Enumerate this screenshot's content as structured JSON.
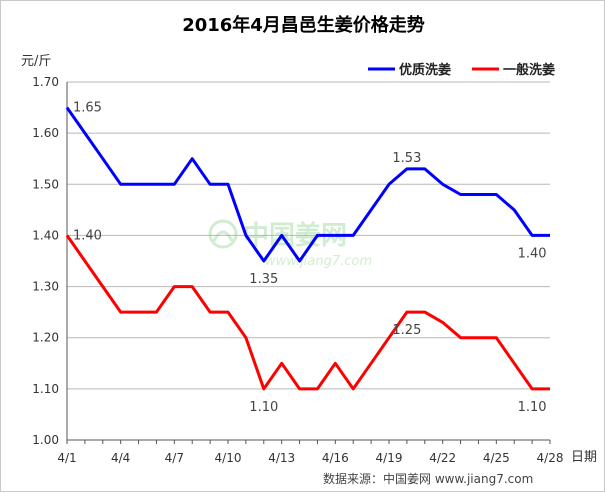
{
  "chart_data": {
    "type": "line",
    "title": "2016年4月昌邑生姜价格走势",
    "ylabel": "元/斤",
    "xlabel": "日期",
    "ylim": [
      1.0,
      1.7
    ],
    "yticks": [
      "1.00",
      "1.10",
      "1.20",
      "1.30",
      "1.40",
      "1.50",
      "1.60",
      "1.70"
    ],
    "xticks": [
      "4/1",
      "4/4",
      "4/7",
      "4/10",
      "4/13",
      "4/16",
      "4/19",
      "4/22",
      "4/25",
      "4/28"
    ],
    "x": [
      1,
      2,
      3,
      4,
      5,
      6,
      7,
      8,
      9,
      10,
      11,
      12,
      13,
      14,
      15,
      16,
      17,
      18,
      19,
      20,
      21,
      22,
      23,
      24,
      25,
      26,
      27,
      28
    ],
    "grid": true,
    "legend_position": "top-right",
    "series": [
      {
        "name": "优质洗姜",
        "color": "#0000ff",
        "values": [
          1.65,
          1.6,
          1.55,
          1.5,
          1.5,
          1.5,
          1.5,
          1.55,
          1.5,
          1.5,
          1.4,
          1.35,
          1.4,
          1.35,
          1.4,
          1.4,
          1.4,
          1.45,
          1.5,
          1.53,
          1.53,
          1.5,
          1.48,
          1.48,
          1.48,
          1.45,
          1.4,
          1.4
        ]
      },
      {
        "name": "一般洗姜",
        "color": "#ff0000",
        "values": [
          1.4,
          1.35,
          1.3,
          1.25,
          1.25,
          1.25,
          1.3,
          1.3,
          1.25,
          1.25,
          1.2,
          1.1,
          1.15,
          1.1,
          1.1,
          1.15,
          1.1,
          1.15,
          1.2,
          1.25,
          1.25,
          1.23,
          1.2,
          1.2,
          1.2,
          1.15,
          1.1,
          1.1
        ]
      }
    ],
    "data_labels": [
      {
        "series": 0,
        "x": 1,
        "text": "1.65"
      },
      {
        "series": 0,
        "x": 12,
        "text": "1.35"
      },
      {
        "series": 0,
        "x": 20,
        "text": "1.53"
      },
      {
        "series": 0,
        "x": 27,
        "text": "1.40"
      },
      {
        "series": 1,
        "x": 1,
        "text": "1.40"
      },
      {
        "series": 1,
        "x": 12,
        "text": "1.10"
      },
      {
        "series": 1,
        "x": 20,
        "text": "1.25"
      },
      {
        "series": 1,
        "x": 27,
        "text": "1.10"
      }
    ]
  },
  "watermark": {
    "name": "中国姜网",
    "url": "www.jiang7.com"
  },
  "source_note": "数据来源：中国姜网 www.jiang7.com"
}
